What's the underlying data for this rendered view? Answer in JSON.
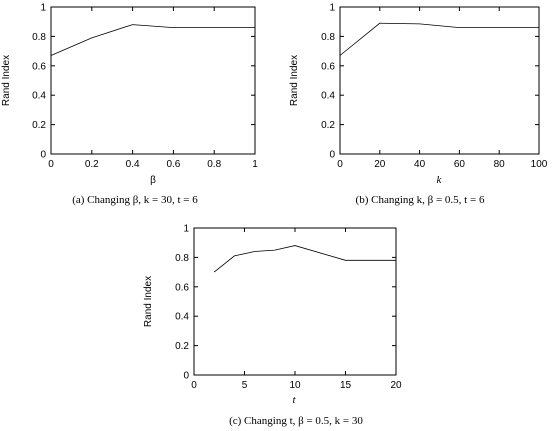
{
  "chart_data": [
    {
      "type": "line",
      "id": "a",
      "x": [
        0,
        0.2,
        0.4,
        0.6,
        0.8,
        1
      ],
      "y": [
        0.67,
        0.79,
        0.88,
        0.86,
        0.86,
        0.86
      ],
      "xlim": [
        0,
        1
      ],
      "ylim": [
        0,
        1
      ],
      "xticks": [
        "0",
        "0.2",
        "0.4",
        "0.6",
        "0.8",
        "1"
      ],
      "yticks": [
        "0",
        "0.2",
        "0.4",
        "0.6",
        "0.8",
        "1"
      ],
      "xlabel": "β",
      "ylabel": "Rand Index",
      "caption": "(a)  Changing β, k = 30, t = 6"
    },
    {
      "type": "line",
      "id": "b",
      "x": [
        0,
        20,
        40,
        60,
        80,
        100
      ],
      "y": [
        0.67,
        0.89,
        0.885,
        0.86,
        0.86,
        0.86
      ],
      "xlim": [
        0,
        100
      ],
      "ylim": [
        0,
        1
      ],
      "xticks": [
        "0",
        "20",
        "40",
        "60",
        "80",
        "100"
      ],
      "yticks": [
        "0",
        "0.2",
        "0.4",
        "0.6",
        "0.8",
        "1"
      ],
      "xlabel": "k",
      "ylabel": "Rand Index",
      "caption": "(b)  Changing k, β = 0.5, t = 6"
    },
    {
      "type": "line",
      "id": "c",
      "x": [
        2,
        4,
        6,
        8,
        10,
        15,
        20
      ],
      "y": [
        0.7,
        0.81,
        0.84,
        0.85,
        0.88,
        0.78,
        0.78
      ],
      "xlim": [
        0,
        20
      ],
      "ylim": [
        0,
        1
      ],
      "xticks": [
        "0",
        "5",
        "10",
        "15",
        "20"
      ],
      "yticks": [
        "0",
        "0.2",
        "0.4",
        "0.6",
        "0.8",
        "1"
      ],
      "xlabel": "t",
      "ylabel": "Rand Index",
      "caption": "(c)  Changing t, β = 0.5, k = 30"
    }
  ]
}
